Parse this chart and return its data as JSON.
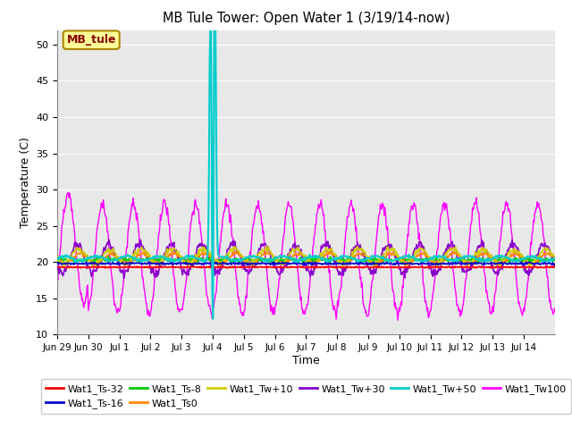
{
  "title": "MB Tule Tower: Open Water 1 (3/19/14-now)",
  "xlabel": "Time",
  "ylabel": "Temperature (C)",
  "ylim": [
    10,
    52
  ],
  "yticks": [
    10,
    15,
    20,
    25,
    30,
    35,
    40,
    45,
    50
  ],
  "xtick_labels": [
    "Jun 29",
    "Jun 30",
    "Jul 1",
    "Jul 2",
    "Jul 3",
    "Jul 4",
    "Jul 5",
    "Jul 6",
    "Jul 7",
    "Jul 8",
    "Jul 9",
    "Jul 10",
    "Jul 11",
    "Jul 12",
    "Jul 13",
    "Jul 14"
  ],
  "background_color": "#e8e8e8",
  "legend_box_facecolor": "#ffff99",
  "legend_box_edgecolor": "#aa8800",
  "series_colors": {
    "Wat1_Ts-32": "#ff0000",
    "Wat1_Ts-16": "#0000cc",
    "Wat1_Ts-8": "#00cc00",
    "Wat1_Ts0": "#ff8800",
    "Wat1_Tw+10": "#cccc00",
    "Wat1_Tw+30": "#8800cc",
    "Wat1_Tw+50": "#00cccc",
    "Wat1_Tw100": "#ff00ff"
  },
  "annotation_label": "MB_tule",
  "grid_color": "#ffffff"
}
